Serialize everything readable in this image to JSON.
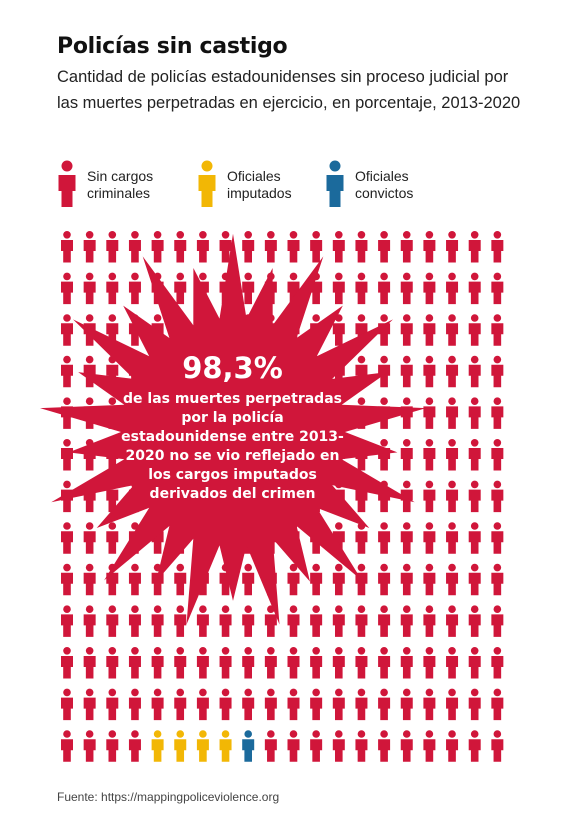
{
  "title": "Policías sin castigo",
  "subtitle": "Cantidad de policías estadounidenses sin proceso judicial por las muertes perpetradas en ejercicio, en porcentaje, 2013-2020",
  "legend": [
    {
      "label_line1": "Sin cargos",
      "label_line2": "criminales",
      "color": "#d0163a",
      "icon": "person-icon"
    },
    {
      "label_line1": "Oficiales",
      "label_line2": "imputados",
      "color": "#f2b705",
      "icon": "person-icon"
    },
    {
      "label_line1": "Oficiales",
      "label_line2": "convictos",
      "color": "#1b6a9c",
      "icon": "person-icon"
    }
  ],
  "annotation": {
    "value": "98,3%",
    "text": "de las muertes perpetradas por la policía estadounidense entre 2013-2020 no se vio reflejado en los cargos imputados derivados del crimen"
  },
  "source": "Fuente: https://mappingpoliceviolence.org",
  "chart_data": {
    "type": "pictogram",
    "unit": "porcentaje",
    "series": [
      {
        "name": "Sin cargos criminales",
        "value": 98.3,
        "color": "#d0163a"
      },
      {
        "name": "Oficiales imputados",
        "value": 1.2,
        "color": "#f2b705"
      },
      {
        "name": "Oficiales convictos",
        "value": 0.5,
        "color": "#1b6a9c"
      }
    ],
    "icon_counts": [
      244,
      4,
      1
    ],
    "grid": {
      "rows": 13,
      "columns": 20
    }
  }
}
